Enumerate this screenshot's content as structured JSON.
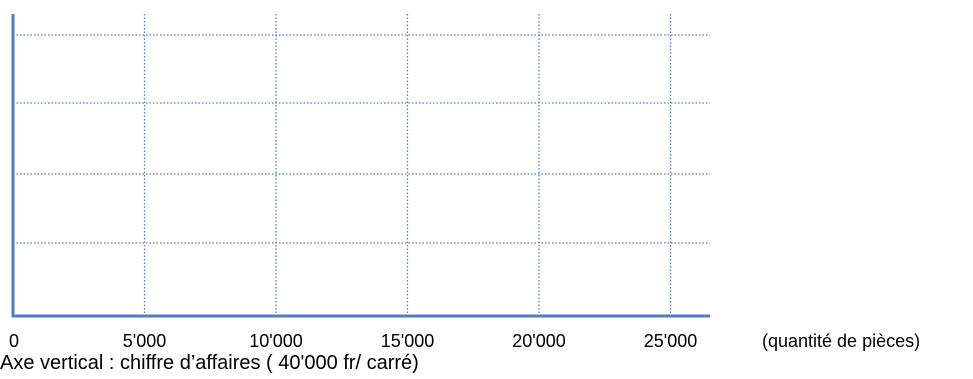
{
  "chart_data": {
    "type": "line",
    "title": "",
    "x_tick_labels": [
      "0",
      "5'000",
      "10'000",
      "15'000",
      "20'000",
      "25'000"
    ],
    "x_ticks": [
      0,
      5000,
      10000,
      15000,
      20000,
      25000
    ],
    "xlim": [
      0,
      26500
    ],
    "xlabel": "(quantité de pièces)",
    "y_gridlines": 4,
    "ylabel": "Axe vertical : chiffre d’affaires ( 40'000 fr/ carré)",
    "grid": true,
    "grid_style": "dotted",
    "axis_color": "#4f7cc4",
    "grid_color": "#4f7cc4",
    "series": []
  }
}
